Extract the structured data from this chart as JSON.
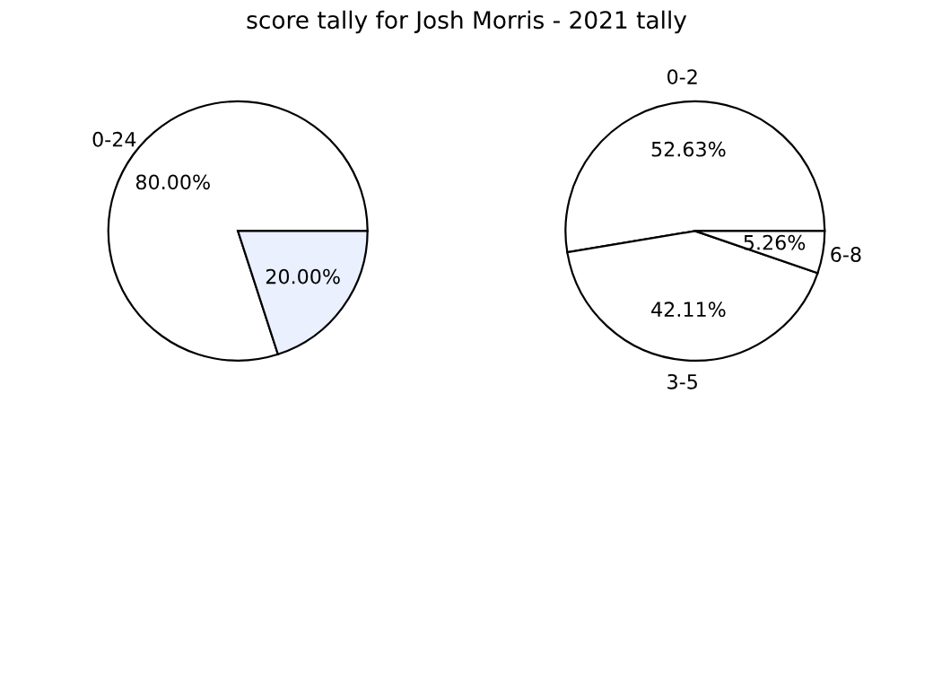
{
  "chart_data": [
    {
      "type": "pie",
      "title": "score tally for Josh Morris - 2021 tally",
      "categories": [
        "0-24",
        null
      ],
      "values": [
        80.0,
        20.0
      ],
      "value_labels": [
        "80.00%",
        "20.00%"
      ],
      "colors": [
        "#ffffff",
        "#eaf0fd"
      ]
    },
    {
      "type": "pie",
      "categories": [
        "0-2",
        "3-5",
        "6-8"
      ],
      "values": [
        52.63,
        42.11,
        5.26
      ],
      "value_labels": [
        "52.63%",
        "42.11%",
        "5.26%"
      ],
      "colors": [
        "#ffffff",
        "#ffffff",
        "#ffffff"
      ]
    }
  ]
}
